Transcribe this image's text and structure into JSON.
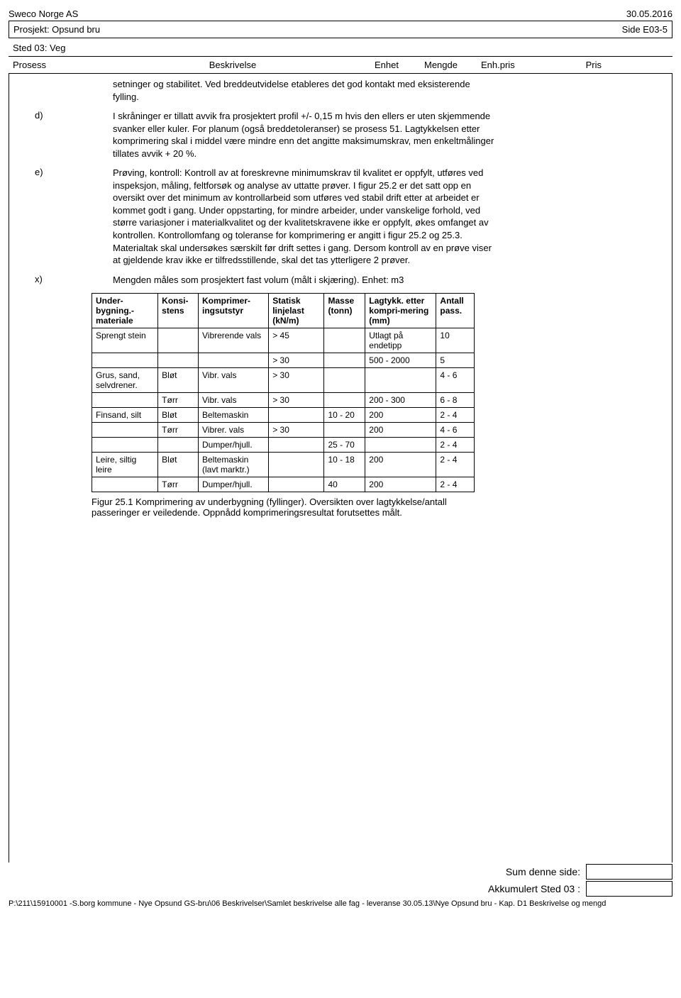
{
  "header": {
    "company": "Sweco Norge AS",
    "date": "30.05.2016",
    "project_label": "Prosjekt: Opsund bru",
    "page_side": "Side E03-5",
    "sted": "Sted 03:  Veg"
  },
  "column_headers": {
    "prosess": "Prosess",
    "beskrivelse": "Beskrivelse",
    "enhet": "Enhet",
    "mengde": "Mengde",
    "enhpris": "Enh.pris",
    "pris": "Pris"
  },
  "paragraphs": {
    "intro": "setninger og stabilitet. Ved breddeutvidelse etableres det god kontakt med eksisterende fylling.",
    "d_label": "d)",
    "d_body": "I skråninger er tillatt avvik fra prosjektert profil +/- 0,15 m hvis den ellers er uten skjemmende svanker eller kuler. For planum (også breddetoleranser) se prosess 51. Lagtykkelsen etter komprimering skal i middel være mindre enn det angitte maksimumskrav, men enkeltmålinger tillates avvik + 20 %.",
    "e_label": "e)",
    "e_body": "Prøving, kontroll: Kontroll av at foreskrevne minimumskrav til kvalitet er oppfylt, utføres ved inspeksjon, måling, feltforsøk og analyse av uttatte prøver. I figur 25.2 er det satt opp en oversikt over det minimum av kontrollarbeid som utføres ved stabil drift etter at arbeidet er kommet godt i gang. Under oppstarting, for mindre arbeider, under vanskelige forhold, ved større variasjoner i materialkvalitet og der kvalitetskravene ikke er oppfylt, økes omfanget av kontrollen. Kontrollomfang og toleranse for komprimering er angitt i figur 25.2 og 25.3. Materialtak skal undersøkes særskilt før drift settes i gang.  Dersom kontroll av en prøve viser at gjeldende krav ikke er tilfredsstillende, skal det tas ytterligere 2 prøver.",
    "x_label": "x)",
    "x_body": "Mengden måles som prosjektert fast volum (målt i skjæring). Enhet: m3",
    "figure_caption": "Figur 25.1  Komprimering av underbygning (fyllinger). Oversikten over lagtykkelse/antall passeringer er veiledende. Oppnådd komprimeringsresultat forutsettes målt."
  },
  "table": {
    "columns": [
      "Under-bygning.-materiale",
      "Konsi-stens",
      "Komprimer-ingsutstyr",
      "Statisk linjelast (kN/m)",
      "Masse (tonn)",
      "Lagtykk. etter kompri-mering (mm)",
      "Antall pass."
    ],
    "rows": [
      {
        "material": "Sprengt stein",
        "konsistens": "",
        "utstyr": "Vibrerende vals",
        "linjelast": "> 45",
        "masse": "",
        "lagtykk": "Utlagt på endetipp",
        "pass": "10",
        "split": true
      },
      {
        "material": "",
        "konsistens": "",
        "utstyr": "",
        "linjelast": "> 30",
        "masse": "",
        "lagtykk": "500 - 2000",
        "pass": "5"
      },
      {
        "material": "Grus, sand, selvdrener.",
        "konsistens": "Bløt",
        "utstyr": "Vibr. vals",
        "linjelast": "> 30",
        "masse": "",
        "lagtykk": "",
        "pass": "4 - 6",
        "split": true
      },
      {
        "material": "",
        "konsistens": "Tørr",
        "utstyr": "Vibr. vals",
        "linjelast": "> 30",
        "masse": "",
        "lagtykk": "200 - 300",
        "pass": "6 - 8"
      },
      {
        "material": "Finsand, silt",
        "konsistens": "Bløt",
        "utstyr": "Beltemaskin",
        "linjelast": "",
        "masse": "10 - 20",
        "lagtykk": "200",
        "pass": "2 - 4",
        "split": true
      },
      {
        "material": "",
        "konsistens": "Tørr",
        "utstyr": "Vibrer. vals",
        "linjelast": "> 30",
        "masse": "",
        "lagtykk": "200",
        "pass": "4 - 6",
        "split": true
      },
      {
        "material": "",
        "konsistens": "",
        "utstyr": "Dumper/hjull.",
        "linjelast": "",
        "masse": "25 - 70",
        "lagtykk": "",
        "pass": "2 - 4"
      },
      {
        "material": "Leire, siltig leire",
        "konsistens": "Bløt",
        "utstyr": "Beltemaskin (lavt marktr.)",
        "linjelast": "",
        "masse": "10 - 18",
        "lagtykk": "200",
        "pass": "2 - 4",
        "split": true
      },
      {
        "material": "",
        "konsistens": "Tørr",
        "utstyr": "Dumper/hjull.",
        "linjelast": "",
        "masse": "40",
        "lagtykk": "200",
        "pass": "2 - 4"
      }
    ]
  },
  "summary": {
    "sum_label": "Sum denne side:",
    "akk_label": "Akkumulert Sted 03 :"
  },
  "footer": {
    "path": "P:\\211\\15910001 -S.borg kommune - Nye Opsund GS-bru\\06 Beskrivelser\\Samlet beskrivelse alle fag - leveranse 30.05.13\\Nye Opsund bru - Kap. D1 Beskrivelse og mengd"
  }
}
